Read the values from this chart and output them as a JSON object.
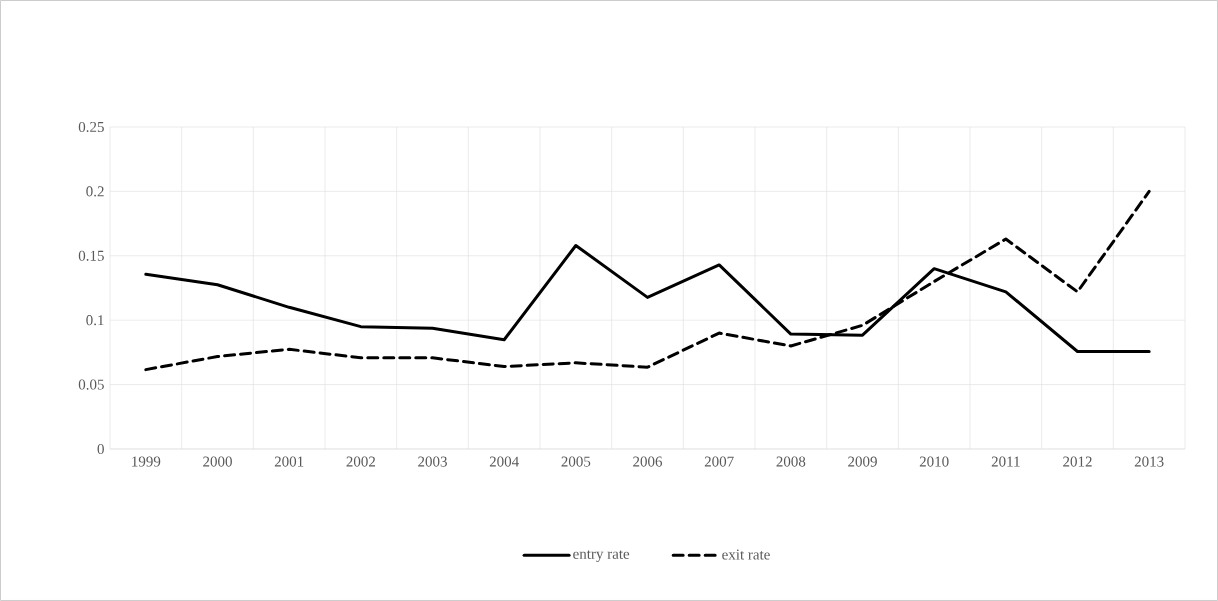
{
  "chart_data": {
    "type": "line",
    "categories": [
      "1999",
      "2000",
      "2001",
      "2002",
      "2003",
      "2004",
      "2005",
      "2006",
      "2007",
      "2008",
      "2009",
      "2010",
      "2011",
      "2012",
      "2013"
    ],
    "series": [
      {
        "name": "entry rate",
        "color": "#000000",
        "line_style": "solid",
        "values": [
          0.1356,
          0.1275,
          0.11,
          0.095,
          0.0938,
          0.0848,
          0.158,
          0.1177,
          0.1429,
          0.0892,
          0.0884,
          0.14,
          0.122,
          0.0757,
          0.0757
        ]
      },
      {
        "name": "exit rate",
        "color": "#000000",
        "line_style": "dashed",
        "values": [
          0.0616,
          0.0718,
          0.0774,
          0.0708,
          0.0708,
          0.064,
          0.0669,
          0.0635,
          0.09,
          0.08,
          0.096,
          0.13,
          0.163,
          0.122,
          0.2
        ]
      }
    ],
    "ylim": [
      0,
      0.25
    ],
    "yticks": [
      0,
      0.05,
      0.1,
      0.15,
      0.2,
      0.25
    ],
    "grid": true,
    "legend": "bottom",
    "marker": "none"
  }
}
